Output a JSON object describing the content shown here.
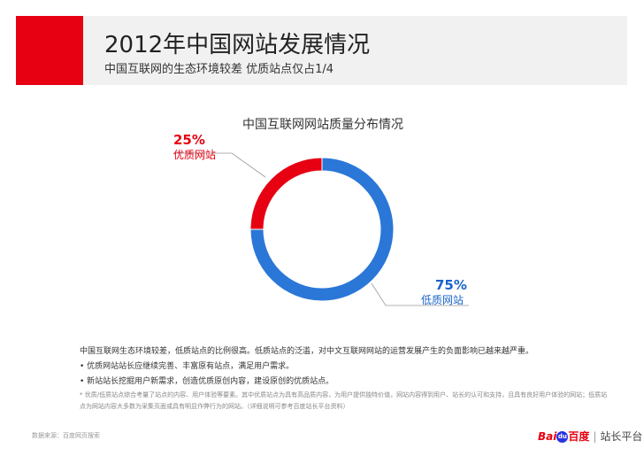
{
  "header": {
    "title": "2012年中国网站发展情况",
    "subtitle": "中国互联网的生态环境较差  优质站点仅占1/4"
  },
  "chart_data": {
    "type": "pie",
    "title": "中国互联网网站质量分布情况",
    "slices": [
      {
        "label": "优质网站",
        "value": 25,
        "display": "25%",
        "color": "#e60012"
      },
      {
        "label": "低质网站",
        "value": 75,
        "display": "75%",
        "color": "#2a77d8"
      }
    ],
    "donut": true
  },
  "notes": {
    "summary": "中国互联网生态环境较差，低质站点的比例很高。低质站点的泛滥，对中文互联网网站的运营发展产生的负面影响已越来越严重。",
    "bullets": [
      "优质网站站长应继续完善、丰富原有站点，满足用户需求。",
      "新站站长挖掘用户新需求，创造优质原创内容，建设原创的优质站点。"
    ],
    "footnote": "* 优质/低质站点综合考量了站点的内容、用户体验等要素。其中优质站点为具有高品质内容，为用户提供独特价值，网站内容得到用户、站长的认可和支持，且具有良好用户体验的网站；低质站点为网站内容大多数为采集页面或具有明显作弊行为的网站。（详细说明可参考百度站长平台资料）"
  },
  "footer": {
    "source": "数据来源：百度网页搜索",
    "logo_bai": "Bai",
    "logo_du": "du",
    "logo_baidu_cn": "百度",
    "logo_platform": "站长平台"
  }
}
